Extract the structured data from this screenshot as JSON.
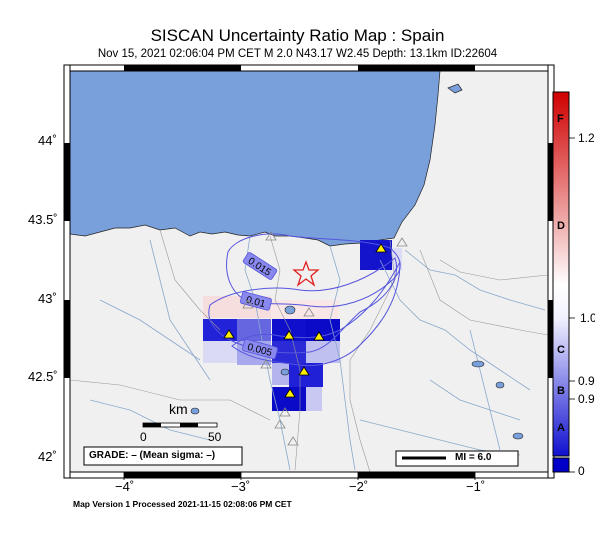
{
  "map": {
    "title": "SISCAN Uncertainty Ratio Map : Spain",
    "subtitle": "Nov 15, 2021 02:06:04 PM CET   M 2.0   N43.17 W2.45   Depth: 13.1km   ID:22604",
    "footer": "Map Version 1 Processed 2021-11-15 02:08:06 PM CET",
    "lat_labels": [
      {
        "text": "44˚",
        "value": 44.0
      },
      {
        "text": "43.5˚",
        "value": 43.5
      },
      {
        "text": "43˚",
        "value": 43.0
      },
      {
        "text": "42.5˚",
        "value": 42.5
      },
      {
        "text": "42˚",
        "value": 42.0
      }
    ],
    "lon_labels": [
      {
        "text": "−4˚",
        "value": -4
      },
      {
        "text": "−3˚",
        "value": -3
      },
      {
        "text": "−2˚",
        "value": -2
      },
      {
        "text": "−1˚",
        "value": -1
      }
    ],
    "scale_bar": {
      "unit": "km",
      "start": "0",
      "end": "50"
    },
    "grade_text": "GRADE: – (Mean sigma: –)",
    "mi_legend": "MI = 6.0",
    "contour_labels": [
      "0.015",
      "0.01",
      "0.005"
    ],
    "epicenter": {
      "lat": 43.17,
      "lon": -2.45
    },
    "colorbar": {
      "colors": [
        "#d00000",
        "#ffffff",
        "#0000c8"
      ],
      "letters": [
        "F",
        "D",
        "C",
        "B",
        "A"
      ],
      "values": [
        "1.2",
        "1.0",
        "0.9",
        "0.9",
        "0"
      ]
    },
    "colors": {
      "sea": "#7aa0dc",
      "land": "#f0f0f0",
      "frame": "#000000"
    }
  }
}
